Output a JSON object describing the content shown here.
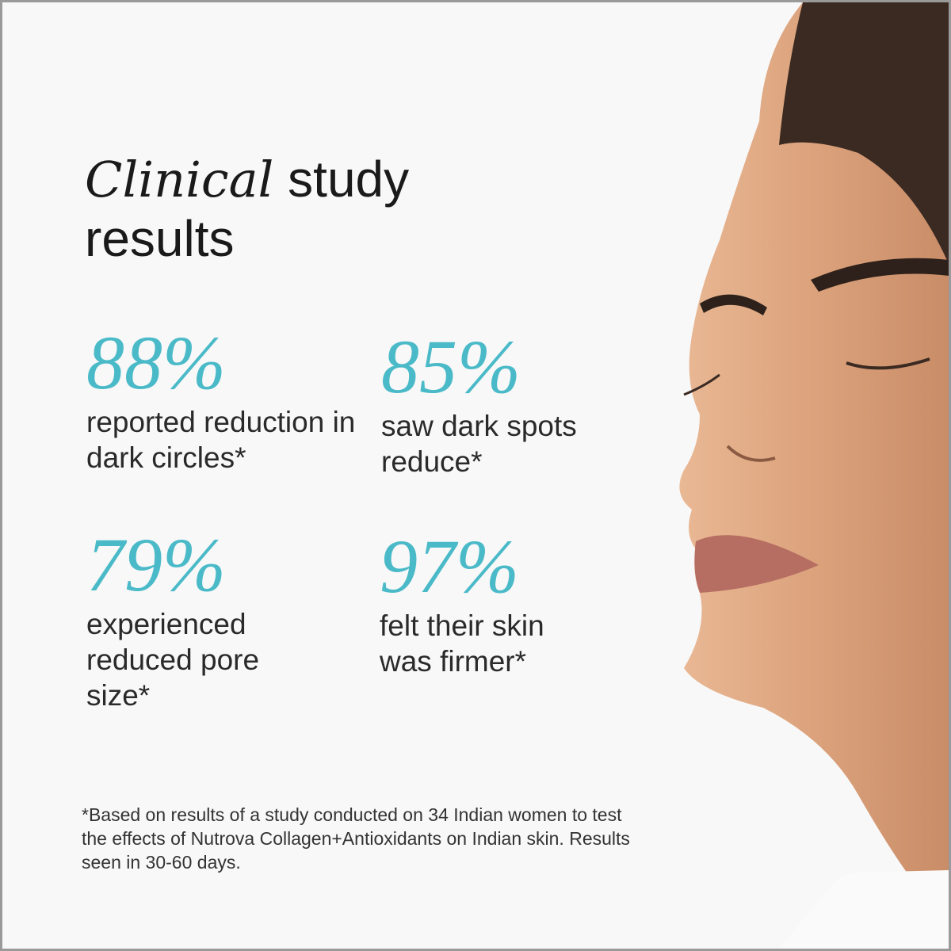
{
  "title": {
    "emphasis": "Clinical",
    "rest": "study",
    "line2": "results"
  },
  "stats": [
    {
      "value": "88%",
      "description": "reported reduction in dark circles*"
    },
    {
      "value": "85%",
      "description": "saw dark spots reduce*"
    },
    {
      "value": "79%",
      "description": "experienced reduced pore size*"
    },
    {
      "value": "97%",
      "description": "felt their skin was firmer*"
    }
  ],
  "footnote": "*Based on results of a study conducted on 34 Indian women to test the effects of Nutrova Collagen+Antioxidants on Indian skin. Results seen in 30-60 days.",
  "colors": {
    "accent": "#4bbac8",
    "background": "#f8f8f8",
    "border": "#9a9a9a"
  }
}
